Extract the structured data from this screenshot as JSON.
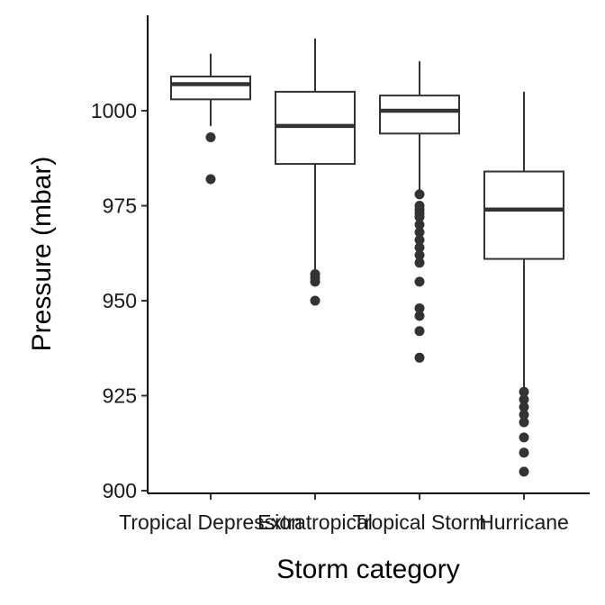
{
  "chart_data": {
    "type": "box",
    "title": "",
    "xlabel": "Storm category",
    "ylabel": "Pressure (mbar)",
    "ylim": [
      900,
      1020
    ],
    "yticks": [
      900,
      925,
      950,
      975,
      1000
    ],
    "grid": false,
    "categories": [
      "Tropical Depression",
      "Extratropical",
      "Tropical Storm",
      "Hurricane"
    ],
    "boxes": [
      {
        "category": "Tropical Depression",
        "whisker_low": 996,
        "q1": 1003,
        "median": 1007,
        "q3": 1009,
        "whisker_high": 1015,
        "outliers": [
          993,
          982
        ]
      },
      {
        "category": "Extratropical",
        "whisker_low": 958,
        "q1": 986,
        "median": 996,
        "q3": 1005,
        "whisker_high": 1019,
        "outliers": [
          957,
          956,
          955,
          950
        ]
      },
      {
        "category": "Tropical Storm",
        "whisker_low": 979,
        "q1": 994,
        "median": 1000,
        "q3": 1004,
        "whisker_high": 1013,
        "outliers": [
          978,
          975,
          974,
          973,
          972,
          970,
          968,
          966,
          964,
          962,
          960,
          955,
          948,
          946,
          942,
          935
        ]
      },
      {
        "category": "Hurricane",
        "whisker_low": 927,
        "q1": 961,
        "median": 974,
        "q3": 984,
        "whisker_high": 1005,
        "outliers": [
          926,
          924,
          922,
          920,
          918,
          914,
          910,
          905
        ]
      }
    ]
  }
}
